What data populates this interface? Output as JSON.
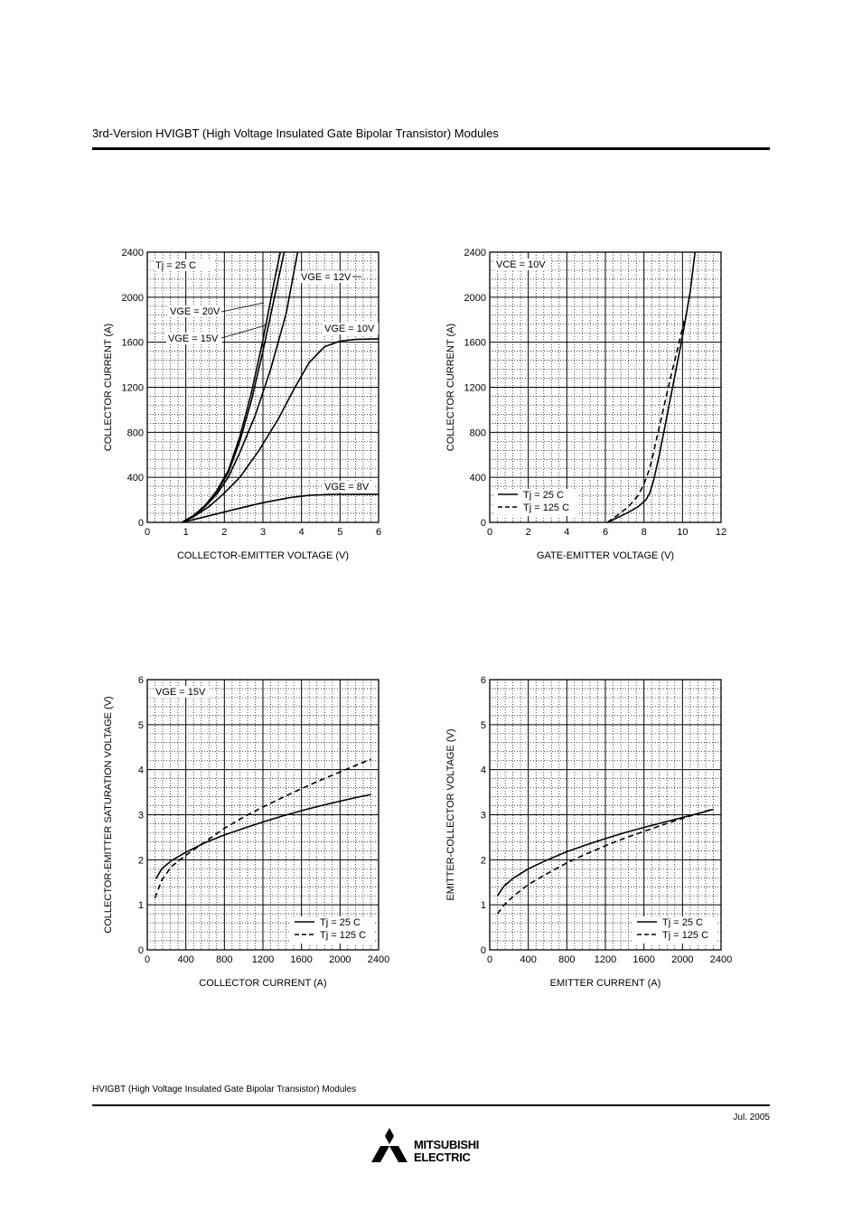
{
  "header": {
    "title": "3rd-Version HVIGBT (High Voltage Insulated Gate Bipolar Transistor) Modules"
  },
  "footer": {
    "title": "HVIGBT (High Voltage Insulated Gate Bipolar Transistor) Modules",
    "date": "Jul.  2005",
    "brand_line1": "MITSUBISHI",
    "brand_line2": "ELECTRIC"
  },
  "chart_data": [
    {
      "type": "line",
      "xlabel": "COLLECTOR-EMITTER VOLTAGE (V)",
      "ylabel": "COLLECTOR CURRENT (A)",
      "xlim": [
        0,
        6
      ],
      "ylim": [
        0,
        2400
      ],
      "xticks": [
        0,
        1,
        2,
        3,
        4,
        5,
        6
      ],
      "yticks": [
        0,
        400,
        800,
        1200,
        1600,
        2000,
        2400
      ],
      "grid": true,
      "annotations": [
        "Tj = 25  C",
        "VGE = 20V",
        "VGE = 15V",
        "VGE = 12V",
        "VGE = 10V",
        "VGE = 8V"
      ],
      "series": [
        {
          "name": "VGE = 20V",
          "style": "solid",
          "x": [
            0.9,
            1.2,
            1.5,
            1.8,
            2.1,
            2.4,
            2.7,
            3.0,
            3.3,
            3.45
          ],
          "y": [
            0,
            60,
            150,
            280,
            460,
            760,
            1150,
            1620,
            2150,
            2400
          ]
        },
        {
          "name": "VGE = 15V",
          "style": "solid",
          "x": [
            0.9,
            1.2,
            1.5,
            1.8,
            2.1,
            2.4,
            2.7,
            3.0,
            3.3,
            3.55
          ],
          "y": [
            0,
            60,
            150,
            270,
            440,
            720,
            1080,
            1520,
            2000,
            2400
          ]
        },
        {
          "name": "VGE = 12V",
          "style": "solid",
          "x": [
            0.9,
            1.2,
            1.5,
            1.8,
            2.1,
            2.4,
            2.8,
            3.2,
            3.6,
            3.9
          ],
          "y": [
            0,
            55,
            140,
            250,
            400,
            620,
            950,
            1360,
            1850,
            2400
          ]
        },
        {
          "name": "VGE = 10V",
          "style": "solid",
          "x": [
            0.9,
            1.2,
            1.6,
            2.0,
            2.4,
            2.9,
            3.4,
            3.8,
            4.2,
            4.6,
            5.0,
            5.4,
            6.0
          ],
          "y": [
            0,
            50,
            140,
            260,
            400,
            640,
            920,
            1180,
            1420,
            1560,
            1610,
            1625,
            1630
          ]
        },
        {
          "name": "VGE = 8V",
          "style": "solid",
          "x": [
            0.9,
            1.5,
            2.2,
            3.0,
            3.7,
            4.2,
            4.8,
            5.4,
            6.0
          ],
          "y": [
            0,
            50,
            110,
            175,
            220,
            240,
            248,
            250,
            250
          ]
        }
      ]
    },
    {
      "type": "line",
      "xlabel": "GATE-EMITTER VOLTAGE (V)",
      "ylabel": "COLLECTOR CURRENT (A)",
      "xlim": [
        0,
        12
      ],
      "ylim": [
        0,
        2400
      ],
      "xticks": [
        0,
        2,
        4,
        6,
        8,
        10,
        12
      ],
      "yticks": [
        0,
        400,
        800,
        1200,
        1600,
        2000,
        2400
      ],
      "grid": true,
      "annotations": [
        "VCE = 10V"
      ],
      "legend": [
        "Tj = 25  C",
        "Tj = 125  C"
      ],
      "series": [
        {
          "name": "Tj = 25  C",
          "style": "solid",
          "x": [
            6.1,
            6.6,
            7.2,
            7.7,
            8.1,
            8.3,
            8.5,
            8.8,
            9.2,
            9.6,
            10.0,
            10.4,
            10.65
          ],
          "y": [
            0,
            40,
            90,
            140,
            200,
            260,
            370,
            600,
            950,
            1300,
            1650,
            2050,
            2400
          ]
        },
        {
          "name": "Tj = 125  C",
          "style": "dashed",
          "x": [
            6.1,
            6.6,
            7.2,
            7.7,
            8.0,
            8.3,
            8.6,
            9.0,
            9.4,
            9.8,
            10.1
          ],
          "y": [
            0,
            60,
            140,
            240,
            340,
            480,
            700,
            1000,
            1300,
            1580,
            1800
          ]
        }
      ]
    },
    {
      "type": "line",
      "xlabel": "COLLECTOR CURRENT (A)",
      "ylabel": "COLLECTOR-EMITTER SATURATION VOLTAGE (V)",
      "xlim": [
        0,
        2400
      ],
      "ylim": [
        0,
        6
      ],
      "xticks": [
        0,
        400,
        800,
        1200,
        1600,
        2000,
        2400
      ],
      "yticks": [
        0,
        1,
        2,
        3,
        4,
        5,
        6
      ],
      "grid": true,
      "annotations": [
        "VGE = 15V"
      ],
      "legend": [
        "Tj = 25  C",
        "Tj = 125  C"
      ],
      "series": [
        {
          "name": "Tj = 25  C",
          "style": "solid",
          "x": [
            90,
            150,
            250,
            400,
            600,
            800,
            1000,
            1200,
            1400,
            1600,
            1800,
            2000,
            2200,
            2320
          ],
          "y": [
            1.58,
            1.8,
            1.98,
            2.17,
            2.38,
            2.55,
            2.7,
            2.84,
            2.97,
            3.09,
            3.2,
            3.3,
            3.4,
            3.45
          ]
        },
        {
          "name": "Tj = 125  C",
          "style": "dashed",
          "x": [
            80,
            150,
            250,
            400,
            600,
            800,
            1000,
            1200,
            1400,
            1600,
            1800,
            2000,
            2200,
            2320
          ],
          "y": [
            1.15,
            1.55,
            1.85,
            2.1,
            2.4,
            2.7,
            2.95,
            3.17,
            3.38,
            3.58,
            3.77,
            3.95,
            4.13,
            4.23
          ]
        }
      ]
    },
    {
      "type": "line",
      "xlabel": "EMITTER CURRENT (A)",
      "ylabel": "EMITTER-COLLECTOR VOLTAGE (V)",
      "xlim": [
        0,
        2400
      ],
      "ylim": [
        0,
        6
      ],
      "xticks": [
        0,
        400,
        800,
        1200,
        1600,
        2000,
        2400
      ],
      "yticks": [
        0,
        1,
        2,
        3,
        4,
        5,
        6
      ],
      "grid": true,
      "legend": [
        "Tj = 25  C",
        "Tj = 125  C"
      ],
      "series": [
        {
          "name": "Tj = 25  C",
          "style": "solid",
          "x": [
            80,
            150,
            250,
            400,
            600,
            800,
            1000,
            1200,
            1400,
            1600,
            1800,
            2000,
            2200,
            2320
          ],
          "y": [
            1.2,
            1.42,
            1.6,
            1.8,
            2.0,
            2.18,
            2.33,
            2.47,
            2.6,
            2.72,
            2.83,
            2.94,
            3.05,
            3.12
          ]
        },
        {
          "name": "Tj = 125  C",
          "style": "dashed",
          "x": [
            80,
            150,
            250,
            400,
            600,
            800,
            1000,
            1200,
            1400,
            1600,
            1800,
            2000,
            2200,
            2320
          ],
          "y": [
            0.8,
            1.0,
            1.2,
            1.45,
            1.7,
            1.93,
            2.13,
            2.31,
            2.48,
            2.63,
            2.78,
            2.92,
            3.05,
            3.13
          ]
        }
      ]
    }
  ]
}
